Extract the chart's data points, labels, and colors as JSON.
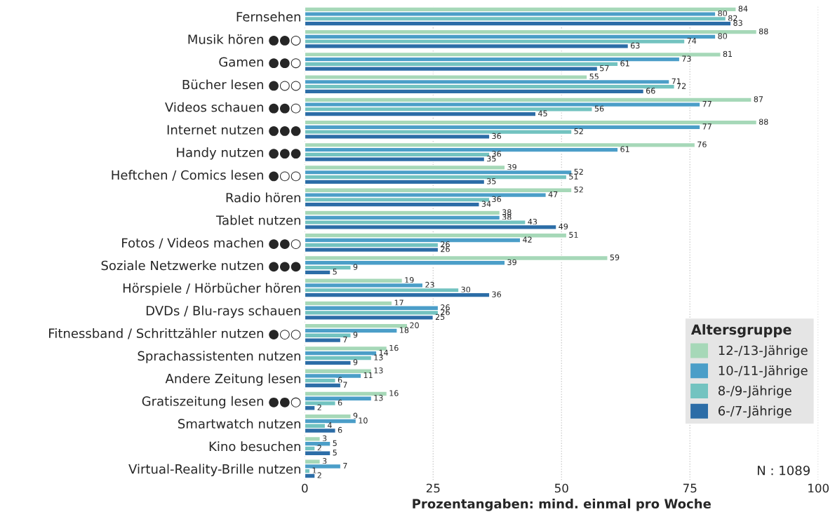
{
  "chart_data": {
    "type": "bar",
    "orientation": "horizontal",
    "xlabel": "Prozentangaben: mind. einmal pro Woche",
    "categories": [
      "Fernsehen",
      "Musik hören ●●○",
      "Gamen ●●○",
      "Bücher lesen ●○○",
      "Videos schauen ●●○",
      "Internet nutzen ●●●",
      "Handy nutzen ●●●",
      "Heftchen / Comics lesen ●○○",
      "Radio hören",
      "Tablet nutzen",
      "Fotos / Videos machen ●●○",
      "Soziale Netzwerke nutzen ●●●",
      "Hörspiele / Hörbücher hören",
      "DVDs / Blu-rays schauen",
      "Fitnessband / Schrittzähler nutzen ●○○",
      "Sprachassistenten nutzen",
      "Andere Zeitung lesen",
      "Gratiszeitung lesen ●●○",
      "Smartwatch nutzen",
      "Kino besuchen",
      "Virtual-Reality-Brille nutzen"
    ],
    "series": [
      {
        "name": "12-/13-Jährige",
        "color": "#a6d8b8",
        "values": [
          84,
          88,
          81,
          55,
          87,
          88,
          76,
          39,
          52,
          38,
          51,
          59,
          19,
          17,
          20,
          16,
          13,
          16,
          9,
          3,
          3
        ]
      },
      {
        "name": "10-/11-Jährige",
        "color": "#4b9ec8",
        "values": [
          80,
          80,
          73,
          71,
          77,
          77,
          61,
          52,
          47,
          38,
          42,
          39,
          23,
          26,
          18,
          14,
          11,
          13,
          10,
          5,
          7
        ]
      },
      {
        "name": "8-/9-Jährige",
        "color": "#73c3c0",
        "values": [
          82,
          74,
          61,
          72,
          56,
          52,
          36,
          51,
          36,
          43,
          26,
          9,
          30,
          26,
          9,
          13,
          6,
          6,
          4,
          2,
          1
        ]
      },
      {
        "name": "6-/7-Jährige",
        "color": "#2c6da7",
        "values": [
          83,
          63,
          57,
          66,
          45,
          36,
          35,
          35,
          34,
          49,
          26,
          5,
          36,
          25,
          7,
          9,
          7,
          2,
          6,
          5,
          2
        ]
      }
    ],
    "xlim": [
      0,
      100
    ],
    "xticks": [
      0,
      25,
      50,
      75,
      100
    ],
    "grid": "x",
    "legend": "bottom right",
    "legend_title": "Altersgruppe",
    "data_labels": true,
    "annotations": [
      "N : 1089"
    ]
  }
}
